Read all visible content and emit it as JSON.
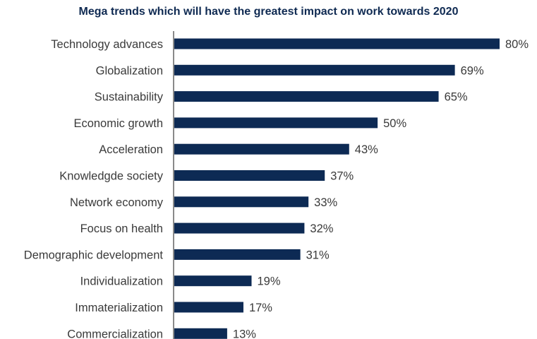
{
  "chart_data": {
    "type": "bar",
    "orientation": "horizontal",
    "title": "Mega trends which will have the greatest impact on work towards 2020",
    "categories": [
      "Technology advances",
      "Globalization",
      "Sustainability",
      "Economic growth",
      "Acceleration",
      "Knowledgde society",
      "Network economy",
      "Focus on health",
      "Demographic development",
      "Individualization",
      "Immaterialization",
      "Commercialization"
    ],
    "values": [
      80,
      69,
      65,
      50,
      43,
      37,
      33,
      32,
      31,
      19,
      17,
      13
    ],
    "value_labels": [
      "80%",
      "69%",
      "65%",
      "50%",
      "43%",
      "37%",
      "33%",
      "32%",
      "31%",
      "19%",
      "17%",
      "13%"
    ],
    "unit": "%",
    "xlim": [
      0,
      80
    ],
    "grid": false,
    "legend": "none",
    "bar_color": "#0d2a54",
    "axis_color": "#8a8a8a"
  }
}
